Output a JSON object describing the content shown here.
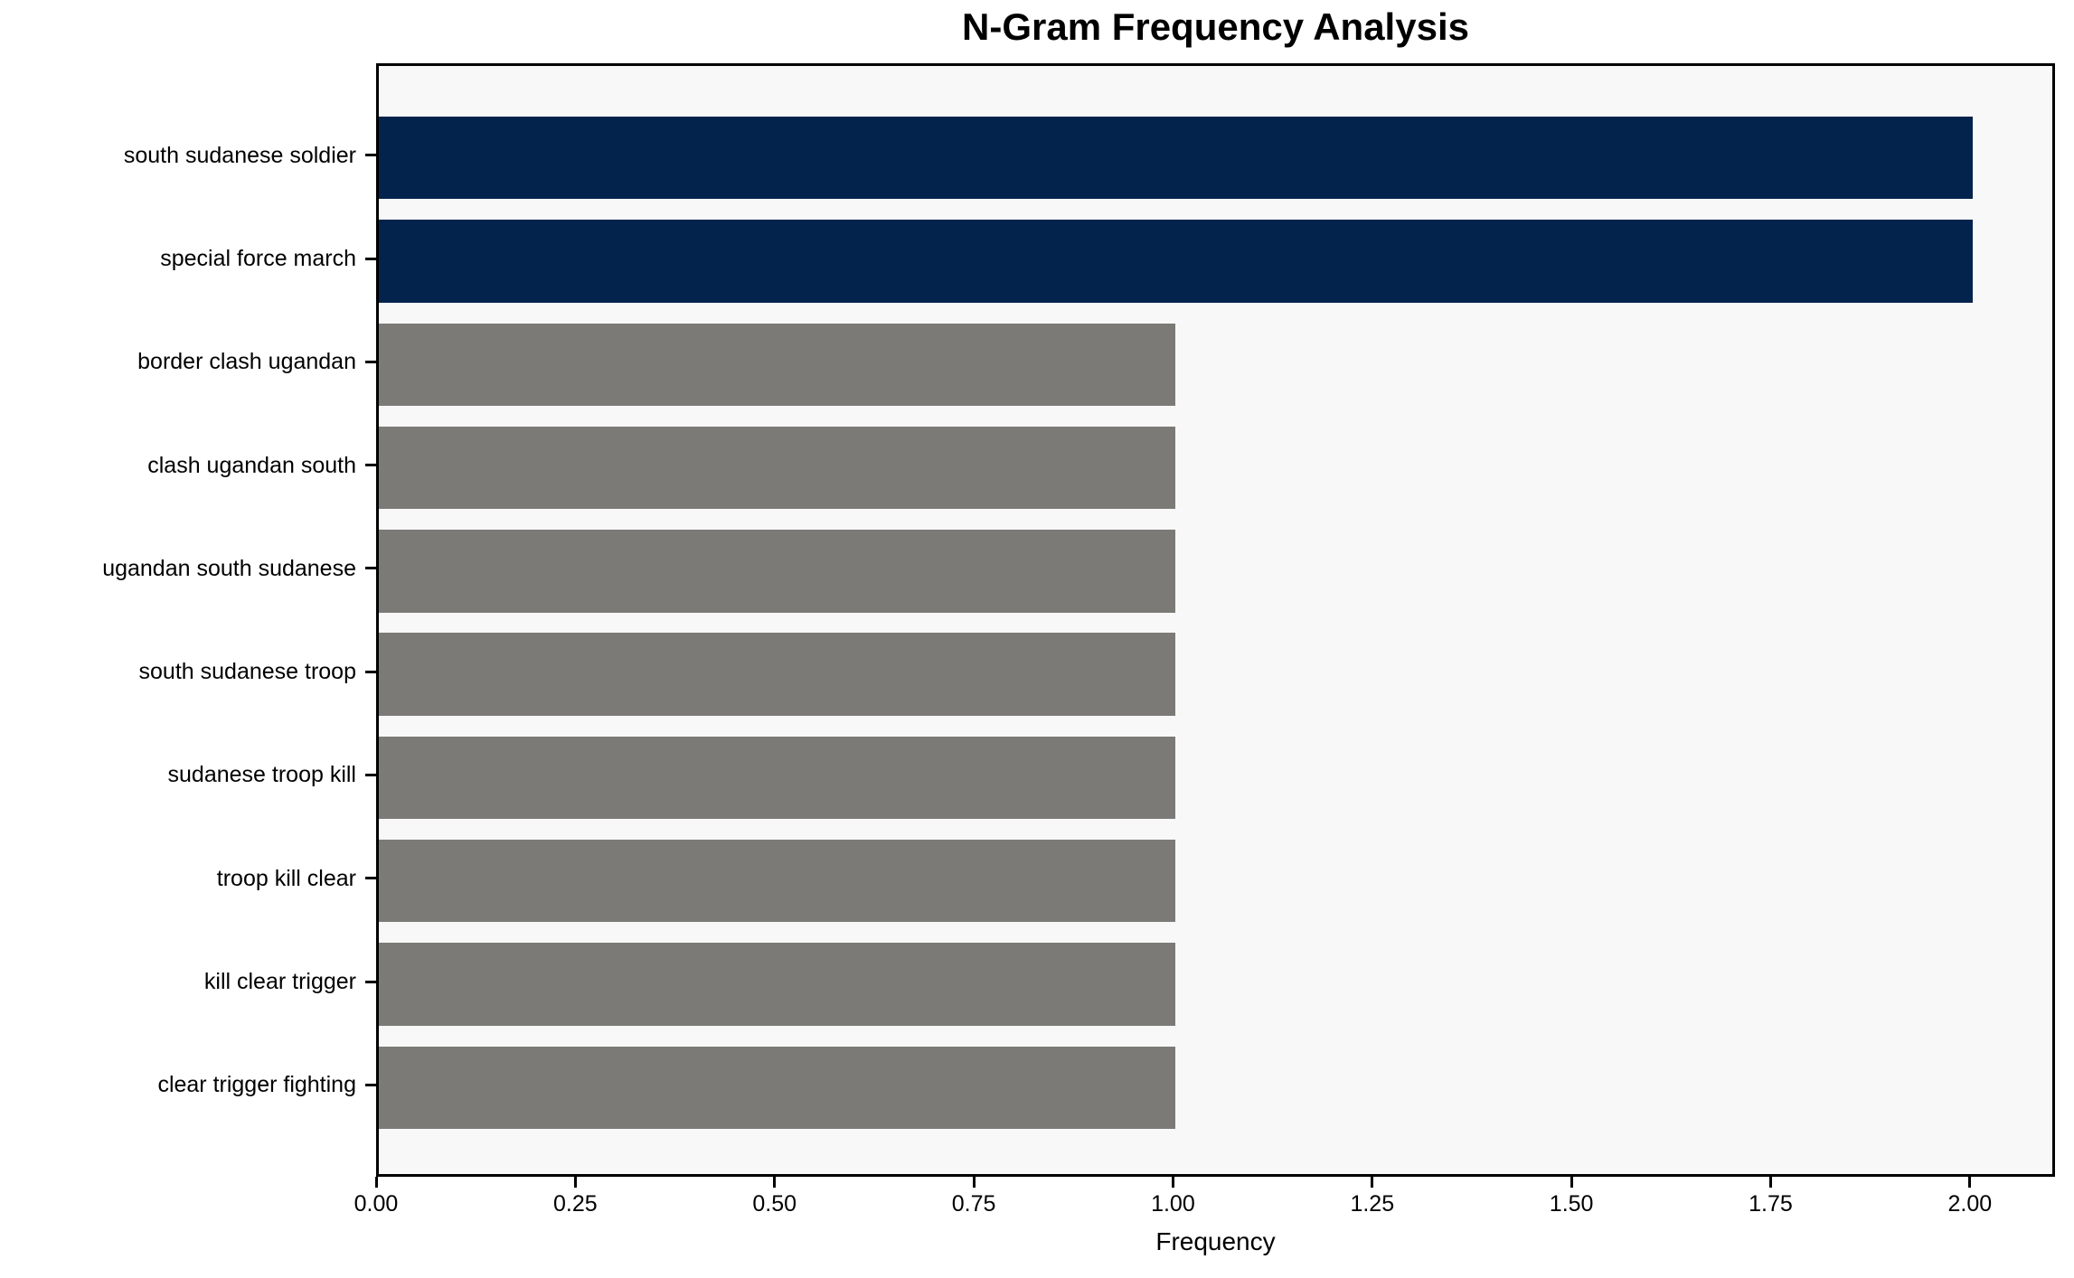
{
  "chart_data": {
    "type": "bar",
    "orientation": "horizontal",
    "title": "N-Gram Frequency Analysis",
    "xlabel": "Frequency",
    "ylabel": "",
    "categories": [
      "south sudanese soldier",
      "special force march",
      "border clash ugandan",
      "clash ugandan south",
      "ugandan south sudanese",
      "south sudanese troop",
      "sudanese troop kill",
      "troop kill clear",
      "kill clear trigger",
      "clear trigger fighting"
    ],
    "values": [
      2,
      2,
      1,
      1,
      1,
      1,
      1,
      1,
      1,
      1
    ],
    "bar_colors": [
      "#03234d",
      "#03234d",
      "#7b7a77",
      "#7b7a77",
      "#7b7a77",
      "#7b7a77",
      "#7b7a77",
      "#7b7a77",
      "#7b7a77",
      "#7b7a77"
    ],
    "xlim": [
      0,
      2.1
    ],
    "xticks": [
      0,
      0.25,
      0.5,
      0.75,
      1.0,
      1.25,
      1.5,
      1.75,
      2.0
    ],
    "xtick_labels": [
      "0.00",
      "0.25",
      "0.50",
      "0.75",
      "1.00",
      "1.25",
      "1.50",
      "1.75",
      "2.00"
    ],
    "colors": {
      "highlight": "#03234d",
      "default": "#7b7a77",
      "plot_background": "#f8f8f8",
      "figure_background": "#ffffff",
      "spine": "#000000"
    },
    "grid": false,
    "legend": null
  }
}
